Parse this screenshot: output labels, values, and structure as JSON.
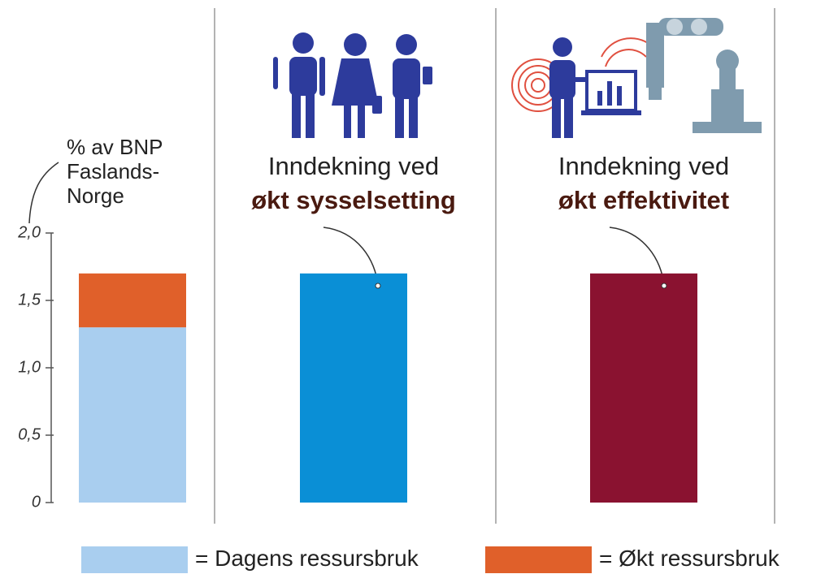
{
  "chart_data": {
    "type": "bar",
    "stacked": true,
    "ylabel": [
      "% av BNP",
      "Faslands-",
      "Norge"
    ],
    "ylim": [
      0,
      2
    ],
    "yticks": [
      0,
      {
        "value": 0.5,
        "label": "0,5"
      },
      {
        "value": 1,
        "label": "1,0"
      },
      {
        "value": 1.5,
        "label": "1,5"
      },
      {
        "value": 2,
        "label": "2,0"
      }
    ],
    "series": [
      {
        "name": "Dagens ressursbruk",
        "color": "#a9ceef",
        "values": [
          1.3,
          null,
          null
        ]
      },
      {
        "name": "Økt ressursbruk",
        "color": "#e0602a",
        "values": [
          0.4,
          null,
          null
        ]
      },
      {
        "color": "#0a8fd6",
        "values": [
          null,
          1.7,
          null
        ]
      },
      {
        "color": "#8a1230",
        "values": [
          null,
          null,
          1.7
        ]
      }
    ],
    "annotations": [
      {
        "lines": [
          "Inndekning ved",
          "økt sysselsetting"
        ]
      },
      {
        "lines": [
          "Inndekning ved",
          "økt effektivitet"
        ]
      }
    ]
  }
}
